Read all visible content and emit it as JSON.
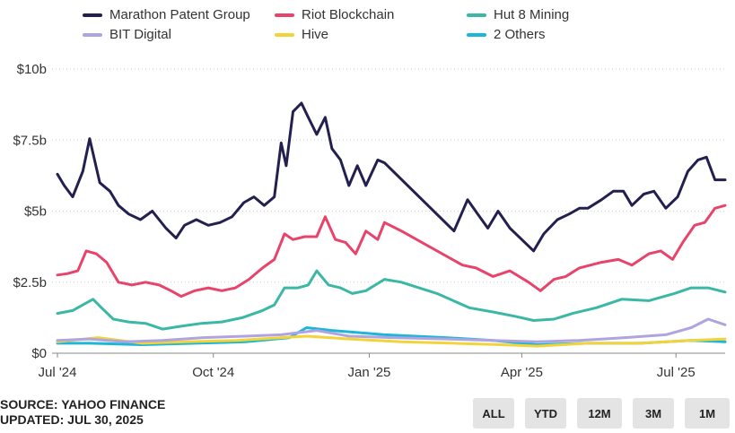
{
  "legend": [
    {
      "name": "Marathon Patent Group",
      "color": "#23204f"
    },
    {
      "name": "Riot Blockchain",
      "color": "#e8446b"
    },
    {
      "name": "Hut 8 Mining",
      "color": "#3bb8a5"
    },
    {
      "name": "BIT Digital",
      "color": "#b0a4e0"
    },
    {
      "name": "Hive",
      "color": "#f2d43a"
    },
    {
      "name": "2 Others",
      "color": "#1cb6d8"
    }
  ],
  "footer": {
    "source": "SOURCE: YAHOO FINANCE",
    "updated": "UPDATED: JUL 30, 2025"
  },
  "range_buttons": [
    "ALL",
    "YTD",
    "12M",
    "3M",
    "1M"
  ],
  "chart_data": {
    "type": "line",
    "xlabel": "",
    "ylabel": "",
    "x_ticks": [
      "Jul '24",
      "Oct '24",
      "Jan '25",
      "Apr '25",
      "Jul '25"
    ],
    "x_tick_dates": [
      "2024-07-01",
      "2024-10-01",
      "2025-01-01",
      "2025-04-01",
      "2025-07-01"
    ],
    "y_ticks": [
      "$0",
      "$2.5b",
      "$5b",
      "$7.5b",
      "$10b"
    ],
    "y_tick_values": [
      0,
      2.5,
      5,
      7.5,
      10
    ],
    "ylim": [
      0,
      10
    ],
    "unit": "billion USD",
    "series": [
      {
        "name": "Marathon Patent Group",
        "color": "#23204f",
        "points": [
          [
            "2024-07-01",
            6.3
          ],
          [
            "2024-07-05",
            5.9
          ],
          [
            "2024-07-10",
            5.5
          ],
          [
            "2024-07-16",
            6.4
          ],
          [
            "2024-07-20",
            7.55
          ],
          [
            "2024-07-26",
            6.0
          ],
          [
            "2024-08-01",
            5.7
          ],
          [
            "2024-08-06",
            5.2
          ],
          [
            "2024-08-12",
            4.9
          ],
          [
            "2024-08-19",
            4.7
          ],
          [
            "2024-08-26",
            5.0
          ],
          [
            "2024-09-03",
            4.4
          ],
          [
            "2024-09-09",
            4.05
          ],
          [
            "2024-09-14",
            4.5
          ],
          [
            "2024-09-21",
            4.7
          ],
          [
            "2024-09-28",
            4.5
          ],
          [
            "2024-10-05",
            4.6
          ],
          [
            "2024-10-12",
            4.8
          ],
          [
            "2024-10-19",
            5.3
          ],
          [
            "2024-10-25",
            5.5
          ],
          [
            "2024-10-31",
            5.2
          ],
          [
            "2024-11-06",
            5.5
          ],
          [
            "2024-11-10",
            7.4
          ],
          [
            "2024-11-13",
            6.6
          ],
          [
            "2024-11-17",
            8.5
          ],
          [
            "2024-11-22",
            8.8
          ],
          [
            "2024-11-26",
            8.3
          ],
          [
            "2024-12-01",
            7.7
          ],
          [
            "2024-12-06",
            8.3
          ],
          [
            "2024-12-10",
            7.2
          ],
          [
            "2024-12-15",
            6.8
          ],
          [
            "2024-12-20",
            5.9
          ],
          [
            "2024-12-25",
            6.6
          ],
          [
            "2024-12-30",
            5.9
          ],
          [
            "2025-01-06",
            6.8
          ],
          [
            "2025-01-10",
            6.7
          ],
          [
            "2025-02-20",
            4.3
          ],
          [
            "2025-02-28",
            5.4
          ],
          [
            "2025-03-06",
            4.9
          ],
          [
            "2025-03-12",
            4.4
          ],
          [
            "2025-03-18",
            5.0
          ],
          [
            "2025-03-25",
            4.4
          ],
          [
            "2025-04-01",
            4.0
          ],
          [
            "2025-04-08",
            3.6
          ],
          [
            "2025-04-14",
            4.2
          ],
          [
            "2025-04-22",
            4.7
          ],
          [
            "2025-04-29",
            4.9
          ],
          [
            "2025-05-05",
            5.1
          ],
          [
            "2025-05-10",
            5.1
          ],
          [
            "2025-05-18",
            5.4
          ],
          [
            "2025-05-25",
            5.7
          ],
          [
            "2025-05-31",
            5.7
          ],
          [
            "2025-06-05",
            5.2
          ],
          [
            "2025-06-12",
            5.6
          ],
          [
            "2025-06-18",
            5.7
          ],
          [
            "2025-06-25",
            5.1
          ],
          [
            "2025-07-02",
            5.5
          ],
          [
            "2025-07-08",
            6.4
          ],
          [
            "2025-07-14",
            6.8
          ],
          [
            "2025-07-19",
            6.9
          ],
          [
            "2025-07-24",
            6.1
          ],
          [
            "2025-07-30",
            6.1
          ]
        ]
      },
      {
        "name": "Riot Blockchain",
        "color": "#e8446b",
        "points": [
          [
            "2024-07-01",
            2.75
          ],
          [
            "2024-07-07",
            2.8
          ],
          [
            "2024-07-13",
            2.9
          ],
          [
            "2024-07-18",
            3.6
          ],
          [
            "2024-07-24",
            3.5
          ],
          [
            "2024-07-30",
            3.2
          ],
          [
            "2024-08-06",
            2.5
          ],
          [
            "2024-08-14",
            2.4
          ],
          [
            "2024-08-22",
            2.5
          ],
          [
            "2024-08-30",
            2.4
          ],
          [
            "2024-09-06",
            2.2
          ],
          [
            "2024-09-12",
            2.0
          ],
          [
            "2024-09-20",
            2.2
          ],
          [
            "2024-09-28",
            2.3
          ],
          [
            "2024-10-06",
            2.2
          ],
          [
            "2024-10-14",
            2.3
          ],
          [
            "2024-10-22",
            2.6
          ],
          [
            "2024-10-30",
            3.0
          ],
          [
            "2024-11-06",
            3.3
          ],
          [
            "2024-11-12",
            4.2
          ],
          [
            "2024-11-17",
            4.0
          ],
          [
            "2024-11-24",
            4.1
          ],
          [
            "2024-12-01",
            4.1
          ],
          [
            "2024-12-06",
            4.8
          ],
          [
            "2024-12-12",
            4.0
          ],
          [
            "2024-12-18",
            3.9
          ],
          [
            "2024-12-24",
            3.5
          ],
          [
            "2024-12-30",
            4.3
          ],
          [
            "2025-01-06",
            4.0
          ],
          [
            "2025-01-10",
            4.6
          ],
          [
            "2025-01-20",
            4.3
          ],
          [
            "2025-02-25",
            3.1
          ],
          [
            "2025-03-05",
            3.0
          ],
          [
            "2025-03-15",
            2.7
          ],
          [
            "2025-03-25",
            2.9
          ],
          [
            "2025-04-05",
            2.5
          ],
          [
            "2025-04-12",
            2.2
          ],
          [
            "2025-04-20",
            2.6
          ],
          [
            "2025-04-27",
            2.7
          ],
          [
            "2025-05-05",
            3.0
          ],
          [
            "2025-05-18",
            3.2
          ],
          [
            "2025-05-28",
            3.3
          ],
          [
            "2025-06-05",
            3.1
          ],
          [
            "2025-06-15",
            3.5
          ],
          [
            "2025-06-22",
            3.6
          ],
          [
            "2025-06-29",
            3.3
          ],
          [
            "2025-07-05",
            3.9
          ],
          [
            "2025-07-12",
            4.5
          ],
          [
            "2025-07-18",
            4.6
          ],
          [
            "2025-07-24",
            5.1
          ],
          [
            "2025-07-30",
            5.2
          ]
        ]
      },
      {
        "name": "Hut 8 Mining",
        "color": "#3bb8a5",
        "points": [
          [
            "2024-07-01",
            1.4
          ],
          [
            "2024-07-10",
            1.5
          ],
          [
            "2024-07-16",
            1.7
          ],
          [
            "2024-07-22",
            1.9
          ],
          [
            "2024-07-27",
            1.6
          ],
          [
            "2024-08-03",
            1.2
          ],
          [
            "2024-08-12",
            1.1
          ],
          [
            "2024-08-22",
            1.05
          ],
          [
            "2024-09-01",
            0.85
          ],
          [
            "2024-09-12",
            0.95
          ],
          [
            "2024-09-24",
            1.05
          ],
          [
            "2024-10-06",
            1.1
          ],
          [
            "2024-10-18",
            1.25
          ],
          [
            "2024-10-30",
            1.5
          ],
          [
            "2024-11-06",
            1.7
          ],
          [
            "2024-11-12",
            2.3
          ],
          [
            "2024-11-20",
            2.3
          ],
          [
            "2024-11-26",
            2.4
          ],
          [
            "2024-12-01",
            2.9
          ],
          [
            "2024-12-08",
            2.4
          ],
          [
            "2024-12-15",
            2.3
          ],
          [
            "2024-12-22",
            2.1
          ],
          [
            "2024-12-30",
            2.2
          ],
          [
            "2025-01-10",
            2.6
          ],
          [
            "2025-01-20",
            2.5
          ],
          [
            "2025-02-10",
            2.1
          ],
          [
            "2025-03-01",
            1.6
          ],
          [
            "2025-03-15",
            1.45
          ],
          [
            "2025-03-28",
            1.3
          ],
          [
            "2025-04-08",
            1.15
          ],
          [
            "2025-04-20",
            1.2
          ],
          [
            "2025-05-01",
            1.4
          ],
          [
            "2025-05-15",
            1.6
          ],
          [
            "2025-05-30",
            1.9
          ],
          [
            "2025-06-15",
            1.85
          ],
          [
            "2025-06-30",
            2.1
          ],
          [
            "2025-07-10",
            2.3
          ],
          [
            "2025-07-20",
            2.3
          ],
          [
            "2025-07-30",
            2.15
          ]
        ]
      },
      {
        "name": "BIT Digital",
        "color": "#b0a4e0",
        "points": [
          [
            "2024-07-01",
            0.45
          ],
          [
            "2024-07-20",
            0.5
          ],
          [
            "2024-08-10",
            0.4
          ],
          [
            "2024-09-01",
            0.45
          ],
          [
            "2024-09-25",
            0.55
          ],
          [
            "2024-10-20",
            0.6
          ],
          [
            "2024-11-10",
            0.65
          ],
          [
            "2024-12-01",
            0.8
          ],
          [
            "2024-12-20",
            0.6
          ],
          [
            "2025-01-15",
            0.55
          ],
          [
            "2025-02-15",
            0.5
          ],
          [
            "2025-03-15",
            0.45
          ],
          [
            "2025-04-10",
            0.4
          ],
          [
            "2025-05-05",
            0.45
          ],
          [
            "2025-06-01",
            0.55
          ],
          [
            "2025-06-25",
            0.65
          ],
          [
            "2025-07-10",
            0.9
          ],
          [
            "2025-07-20",
            1.2
          ],
          [
            "2025-07-30",
            1.0
          ]
        ]
      },
      {
        "name": "Hive",
        "color": "#f2d43a",
        "points": [
          [
            "2024-07-01",
            0.4
          ],
          [
            "2024-07-25",
            0.55
          ],
          [
            "2024-08-20",
            0.35
          ],
          [
            "2024-09-15",
            0.4
          ],
          [
            "2024-10-15",
            0.45
          ],
          [
            "2024-11-10",
            0.55
          ],
          [
            "2024-11-25",
            0.6
          ],
          [
            "2024-12-20",
            0.5
          ],
          [
            "2025-01-20",
            0.4
          ],
          [
            "2025-02-20",
            0.35
          ],
          [
            "2025-03-20",
            0.3
          ],
          [
            "2025-04-10",
            0.25
          ],
          [
            "2025-05-10",
            0.35
          ],
          [
            "2025-06-10",
            0.35
          ],
          [
            "2025-07-10",
            0.45
          ],
          [
            "2025-07-30",
            0.5
          ]
        ]
      },
      {
        "name": "2 Others",
        "color": "#1cb6d8",
        "points": [
          [
            "2024-07-01",
            0.35
          ],
          [
            "2024-07-20",
            0.35
          ],
          [
            "2024-08-20",
            0.3
          ],
          [
            "2024-09-20",
            0.35
          ],
          [
            "2024-10-20",
            0.4
          ],
          [
            "2024-11-15",
            0.55
          ],
          [
            "2024-11-25",
            0.9
          ],
          [
            "2024-12-10",
            0.8
          ],
          [
            "2025-01-10",
            0.65
          ],
          [
            "2025-02-15",
            0.55
          ],
          [
            "2025-03-15",
            0.45
          ],
          [
            "2025-04-10",
            0.3
          ],
          [
            "2025-05-10",
            0.35
          ],
          [
            "2025-06-10",
            0.35
          ],
          [
            "2025-07-10",
            0.45
          ],
          [
            "2025-07-30",
            0.4
          ]
        ]
      }
    ]
  }
}
